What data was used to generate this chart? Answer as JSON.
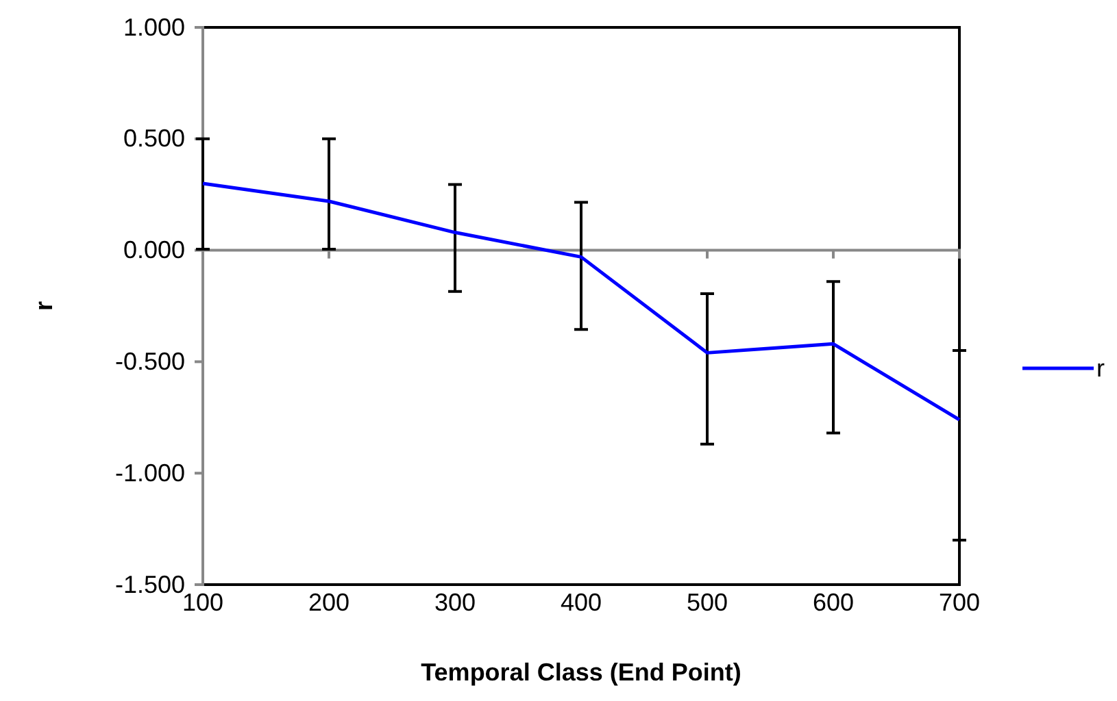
{
  "chart_data": {
    "type": "line",
    "xlabel": "Temporal Class (End Point)",
    "ylabel": "r",
    "x": [
      100,
      200,
      300,
      400,
      500,
      600,
      700
    ],
    "series": [
      {
        "name": "r",
        "color": "#0000ff",
        "values": [
          0.3,
          0.22,
          0.08,
          -0.03,
          -0.46,
          -0.42,
          -0.76
        ],
        "errors": [
          [
            0.005,
            0.5
          ],
          [
            0.005,
            0.5
          ],
          [
            -0.185,
            0.295
          ],
          [
            -0.355,
            0.215
          ],
          [
            -0.87,
            -0.195
          ],
          [
            -0.82,
            -0.14
          ],
          [
            -1.3,
            -0.45
          ]
        ]
      }
    ],
    "xlim": [
      100,
      700
    ],
    "xticks": [
      100,
      200,
      300,
      400,
      500,
      600,
      700
    ],
    "ylim": [
      -1.5,
      1.0
    ],
    "yticks": [
      {
        "value": -1.5,
        "label": "-1.500"
      },
      {
        "value": -1.0,
        "label": "-1.000"
      },
      {
        "value": -0.5,
        "label": "-0.500"
      },
      {
        "value": 0,
        "label": "0.000"
      },
      {
        "value": 0.5,
        "label": "0.500"
      },
      {
        "value": 1.0,
        "label": "1.000"
      }
    ],
    "legend": "right",
    "marker": "none",
    "line_style": "solid",
    "grid": false
  }
}
